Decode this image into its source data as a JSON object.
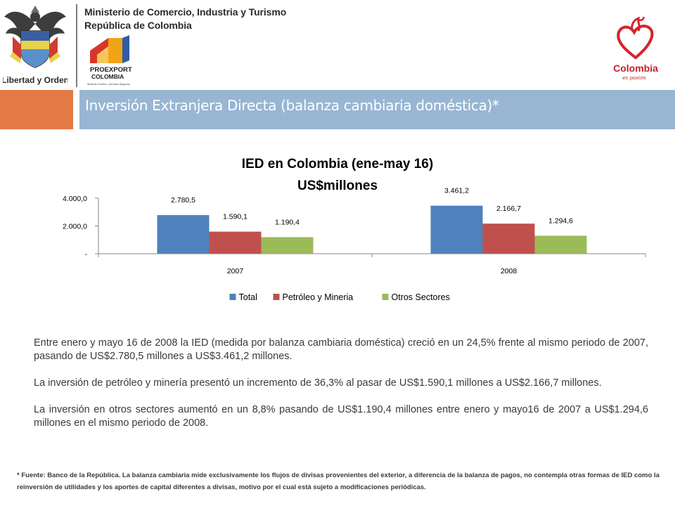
{
  "header": {
    "ministry_line1": "Ministerio de Comercio, Industria y Turismo",
    "ministry_line2": "República de Colombia",
    "coat_motto": "Libertad y Orden",
    "proexport_name": "PROEXPORT",
    "proexport_country": "COLOMBIA",
    "proexport_tagline": "Abriendo Puertos, Cerrando Negocios",
    "brand_name": "Colombia",
    "brand_tagline": "es pasión"
  },
  "band": {
    "title": "Inversión Extranjera Directa (balanza cambiaria doméstica)*",
    "orange": "#e37a45",
    "blue": "#98b6d3"
  },
  "chart_data": {
    "type": "bar",
    "title_line1": "IED en Colombia (ene-may 16)",
    "title_line2": "US$millones",
    "categories": [
      "2007",
      "2008"
    ],
    "series": [
      {
        "name": "Total",
        "color": "#4f81bd",
        "values": [
          2780.5,
          3461.2
        ],
        "labels": [
          "2.780,5",
          "3.461,2"
        ]
      },
      {
        "name": "Petróleo y Mineria",
        "color": "#c0504d",
        "values": [
          1590.1,
          2166.7
        ],
        "labels": [
          "1.590,1",
          "2.166,7"
        ]
      },
      {
        "name": "Otros Sectores",
        "color": "#9bbb59",
        "values": [
          1190.4,
          1294.6
        ],
        "labels": [
          "1.190,4",
          "1.294,6"
        ]
      }
    ],
    "yticks": [
      {
        "value": 0,
        "label": "-"
      },
      {
        "value": 2000,
        "label": "2.000,0"
      },
      {
        "value": 4000,
        "label": "4.000,0"
      }
    ],
    "ylim": [
      0,
      4000
    ],
    "grid": false,
    "legend_position": "bottom"
  },
  "body": {
    "p1": "Entre enero y mayo 16 de 2008 la IED (medida por balanza cambiaria doméstica) creció en un 24,5% frente al mismo periodo de 2007, pasando de US$2.780,5 millones a US$3.461,2 millones.",
    "p2": "La inversión de petróleo y minería  presentó un incremento de 36,3% al pasar de US$1.590,1 millones a US$2.166,7 millones.",
    "p3": "La inversión en otros sectores aumentó en un  8,8% pasando de US$1.190,4 millones entre enero y mayo16 de 2007 a US$1.294,6 millones en el mismo periodo de 2008."
  },
  "footnote": "* Fuente: Banco de la República. La balanza cambiaria mide exclusivamente los flujos de divisas provenientes del exterior, a diferencia de la balanza de pagos, no contempla otras formas de IED como la reinversión de utilidades y los aportes de capital diferentes a divisas, motivo por el cual está sujeto a modificaciones periódicas."
}
